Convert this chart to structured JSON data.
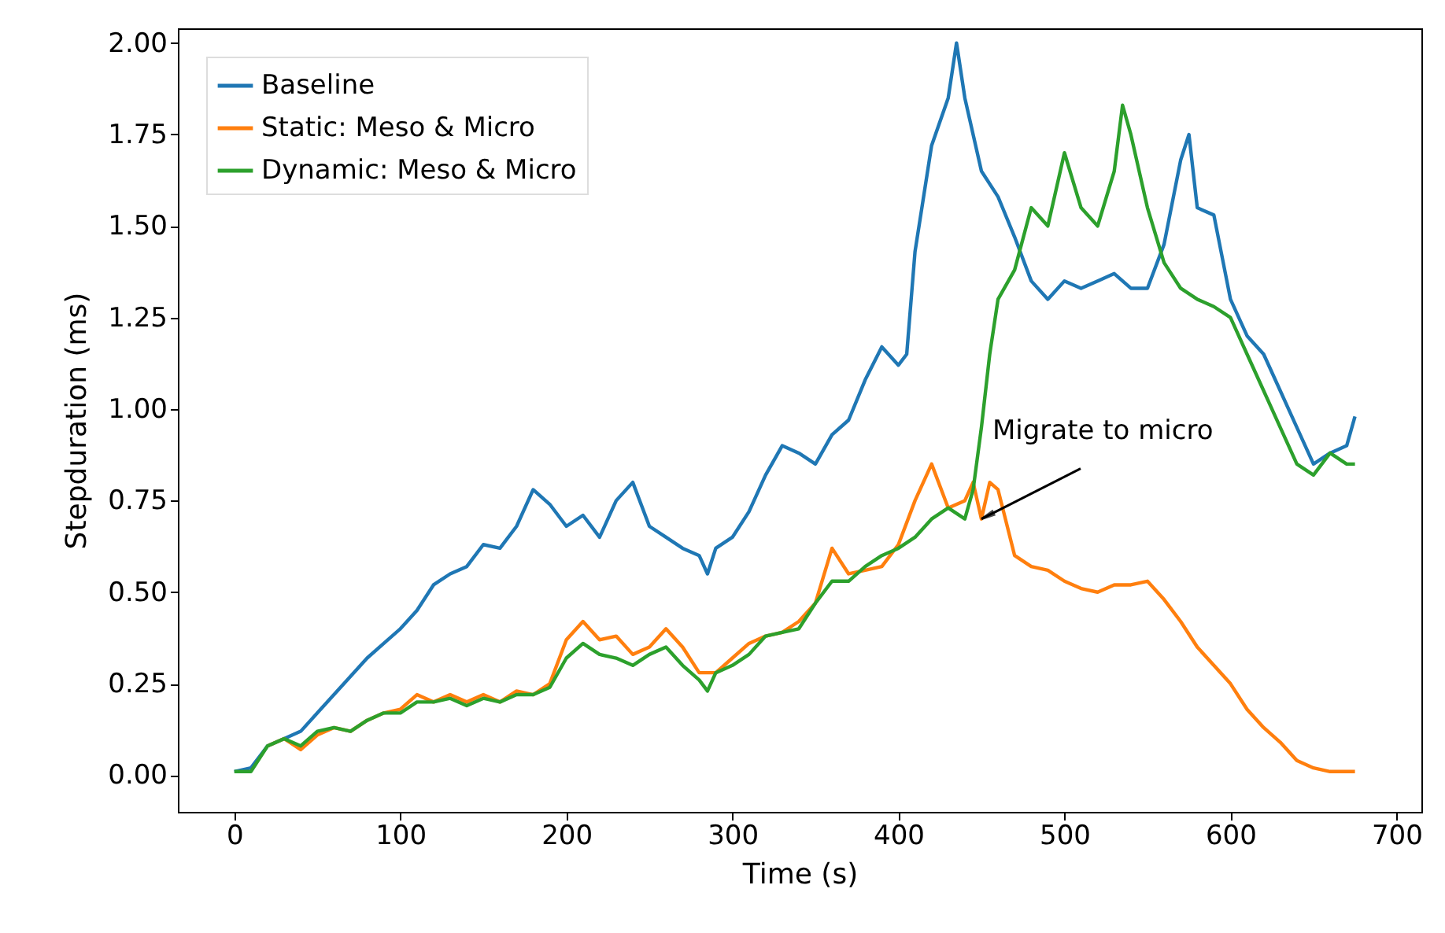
{
  "chart_data": {
    "type": "line",
    "xlabel": "Time (s)",
    "ylabel": "Stepduration (ms)",
    "xlim": [
      -34,
      715
    ],
    "ylim": [
      -0.1,
      2.04
    ],
    "xticks": [
      0,
      100,
      200,
      300,
      400,
      500,
      600,
      700
    ],
    "yticks": [
      {
        "value": 0,
        "label": "0.00"
      },
      {
        "value": 0.25,
        "label": "0.25"
      },
      {
        "value": 0.5,
        "label": "0.50"
      },
      {
        "value": 0.75,
        "label": "0.75"
      },
      {
        "value": 1,
        "label": "1.00"
      },
      {
        "value": 1.25,
        "label": "1.25"
      },
      {
        "value": 1.5,
        "label": "1.50"
      },
      {
        "value": 1.75,
        "label": "1.75"
      },
      {
        "value": 2,
        "label": "2.00"
      }
    ],
    "grid": false,
    "legend": "top left",
    "line_style": "solid",
    "marker": "none",
    "annotations": [
      {
        "text": "Migrate to micro",
        "x": 450,
        "y": 0.7
      }
    ],
    "series": [
      {
        "name": "Baseline",
        "color": "#1f77b4",
        "x": [
          0,
          10,
          20,
          30,
          40,
          50,
          60,
          70,
          80,
          90,
          100,
          110,
          120,
          130,
          140,
          150,
          160,
          170,
          180,
          190,
          200,
          210,
          220,
          230,
          240,
          250,
          260,
          270,
          280,
          285,
          290,
          300,
          310,
          320,
          330,
          340,
          350,
          360,
          370,
          380,
          390,
          400,
          405,
          410,
          420,
          430,
          435,
          440,
          445,
          450,
          460,
          470,
          480,
          490,
          500,
          510,
          520,
          530,
          540,
          550,
          560,
          570,
          575,
          580,
          590,
          600,
          610,
          620,
          630,
          640,
          650,
          660,
          670,
          675
        ],
        "values": [
          0.01,
          0.02,
          0.08,
          0.1,
          0.12,
          0.17,
          0.22,
          0.27,
          0.32,
          0.36,
          0.4,
          0.45,
          0.52,
          0.55,
          0.57,
          0.63,
          0.62,
          0.68,
          0.78,
          0.74,
          0.68,
          0.71,
          0.65,
          0.75,
          0.8,
          0.68,
          0.65,
          0.62,
          0.6,
          0.55,
          0.62,
          0.65,
          0.72,
          0.82,
          0.9,
          0.88,
          0.85,
          0.93,
          0.97,
          1.08,
          1.17,
          1.12,
          1.15,
          1.43,
          1.72,
          1.85,
          2.0,
          1.85,
          1.75,
          1.65,
          1.58,
          1.47,
          1.35,
          1.3,
          1.35,
          1.33,
          1.35,
          1.37,
          1.33,
          1.33,
          1.45,
          1.68,
          1.75,
          1.55,
          1.53,
          1.3,
          1.2,
          1.15,
          1.05,
          0.95,
          0.85,
          0.88,
          0.9,
          0.98
        ]
      },
      {
        "name": "Static: Meso & Micro",
        "color": "#ff7f0e",
        "x": [
          20,
          30,
          40,
          50,
          60,
          70,
          80,
          90,
          100,
          110,
          120,
          130,
          140,
          150,
          160,
          170,
          180,
          190,
          200,
          210,
          220,
          230,
          240,
          250,
          260,
          270,
          280,
          290,
          300,
          310,
          320,
          330,
          340,
          350,
          360,
          370,
          380,
          390,
          400,
          410,
          420,
          430,
          440,
          445,
          450,
          455,
          460,
          470,
          480,
          490,
          500,
          510,
          520,
          530,
          540,
          550,
          560,
          570,
          580,
          590,
          600,
          610,
          620,
          630,
          640,
          650,
          660,
          675
        ],
        "values": [
          0.08,
          0.1,
          0.07,
          0.11,
          0.13,
          0.12,
          0.15,
          0.17,
          0.18,
          0.22,
          0.2,
          0.22,
          0.2,
          0.22,
          0.2,
          0.23,
          0.22,
          0.25,
          0.37,
          0.42,
          0.37,
          0.38,
          0.33,
          0.35,
          0.4,
          0.35,
          0.28,
          0.28,
          0.32,
          0.36,
          0.38,
          0.39,
          0.42,
          0.47,
          0.62,
          0.55,
          0.56,
          0.57,
          0.63,
          0.75,
          0.85,
          0.73,
          0.75,
          0.8,
          0.7,
          0.8,
          0.78,
          0.6,
          0.57,
          0.56,
          0.53,
          0.51,
          0.5,
          0.52,
          0.52,
          0.53,
          0.48,
          0.42,
          0.35,
          0.3,
          0.25,
          0.18,
          0.13,
          0.09,
          0.04,
          0.02,
          0.01,
          0.01
        ]
      },
      {
        "name": "Dynamic: Meso & Micro",
        "color": "#2ca02c",
        "x": [
          0,
          10,
          20,
          30,
          40,
          50,
          60,
          70,
          80,
          90,
          100,
          110,
          120,
          130,
          140,
          150,
          160,
          170,
          180,
          190,
          200,
          210,
          220,
          230,
          240,
          250,
          260,
          270,
          280,
          285,
          290,
          300,
          310,
          320,
          330,
          340,
          350,
          360,
          370,
          380,
          390,
          400,
          410,
          420,
          430,
          440,
          445,
          450,
          455,
          460,
          470,
          480,
          490,
          500,
          510,
          520,
          530,
          535,
          540,
          550,
          560,
          570,
          580,
          590,
          600,
          610,
          620,
          630,
          640,
          650,
          660,
          670,
          675
        ],
        "values": [
          0.01,
          0.01,
          0.08,
          0.1,
          0.08,
          0.12,
          0.13,
          0.12,
          0.15,
          0.17,
          0.17,
          0.2,
          0.2,
          0.21,
          0.19,
          0.21,
          0.2,
          0.22,
          0.22,
          0.24,
          0.32,
          0.36,
          0.33,
          0.32,
          0.3,
          0.33,
          0.35,
          0.3,
          0.26,
          0.23,
          0.28,
          0.3,
          0.33,
          0.38,
          0.39,
          0.4,
          0.47,
          0.53,
          0.53,
          0.57,
          0.6,
          0.62,
          0.65,
          0.7,
          0.73,
          0.7,
          0.78,
          0.95,
          1.15,
          1.3,
          1.38,
          1.55,
          1.5,
          1.7,
          1.55,
          1.5,
          1.65,
          1.83,
          1.75,
          1.55,
          1.4,
          1.33,
          1.3,
          1.28,
          1.25,
          1.15,
          1.05,
          0.95,
          0.85,
          0.82,
          0.88,
          0.85,
          0.85
        ]
      }
    ]
  }
}
